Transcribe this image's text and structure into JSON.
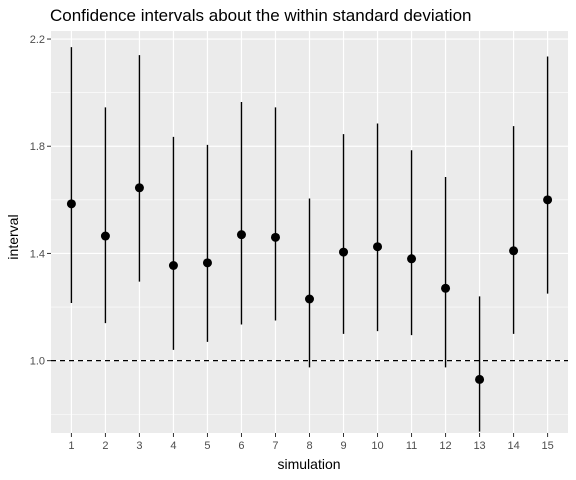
{
  "chart_data": {
    "type": "scatter",
    "title": "Confidence intervals about the within standard deviation",
    "xlabel": "simulation",
    "ylabel": "interval",
    "categories": [
      "1",
      "2",
      "3",
      "4",
      "5",
      "6",
      "7",
      "8",
      "9",
      "10",
      "11",
      "12",
      "13",
      "14",
      "15"
    ],
    "estimates": [
      1.585,
      1.465,
      1.645,
      1.355,
      1.365,
      1.47,
      1.46,
      1.23,
      1.405,
      1.425,
      1.38,
      1.27,
      0.93,
      1.41,
      1.6
    ],
    "lower": [
      1.215,
      1.14,
      1.295,
      1.04,
      1.07,
      1.135,
      1.15,
      0.975,
      1.1,
      1.11,
      1.095,
      0.975,
      0.735,
      1.1,
      1.25
    ],
    "upper": [
      2.17,
      1.945,
      2.14,
      1.835,
      1.805,
      1.965,
      1.945,
      1.605,
      1.845,
      1.885,
      1.785,
      1.685,
      1.24,
      1.875,
      2.135
    ],
    "ylim": [
      0.73,
      2.23
    ],
    "yticks": [
      1.0,
      1.4,
      1.8,
      2.2
    ],
    "ytick_labels": [
      "1.0",
      "1.4",
      "1.8",
      "2.2"
    ],
    "reference_line": {
      "y": 1.0,
      "style": "dashed"
    },
    "grid": true,
    "colors": {
      "panel": "#ebebeb",
      "grid": "#ffffff",
      "marks": "#000000"
    }
  }
}
